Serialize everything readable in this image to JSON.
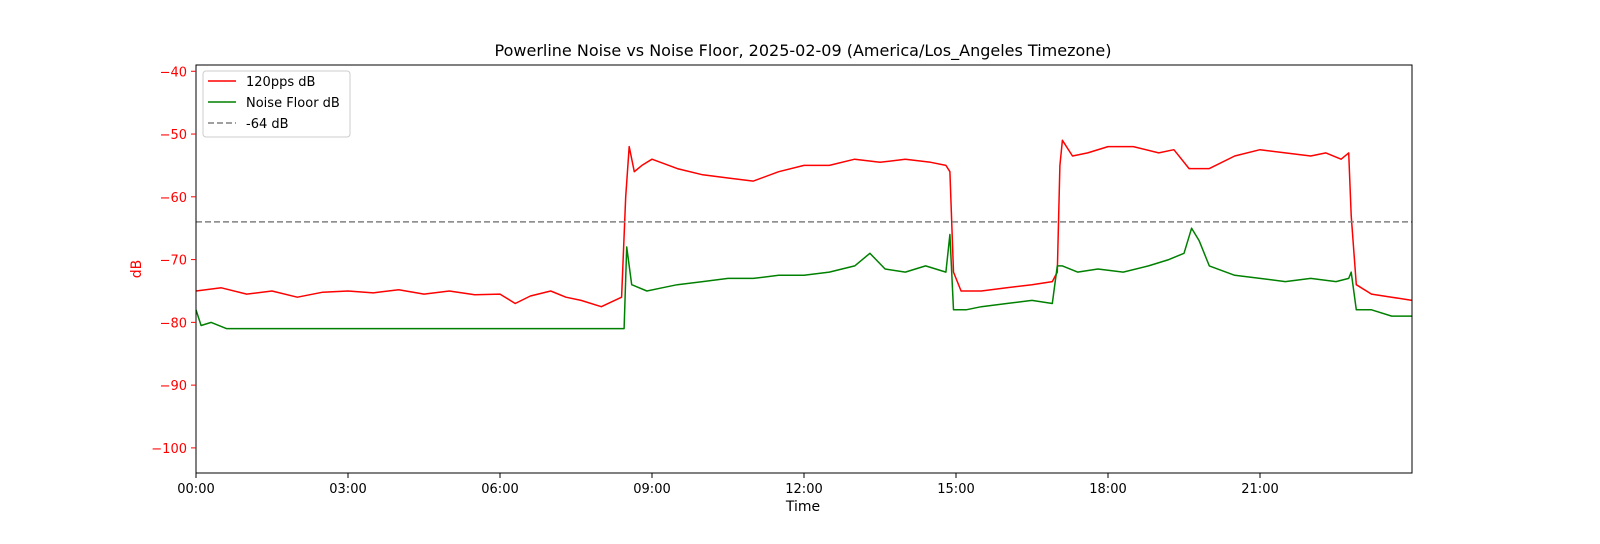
{
  "chart_data": {
    "type": "line",
    "title": "Powerline Noise vs Noise Floor, 2025-02-09 (America/Los_Angeles Timezone)",
    "xlabel": "Time",
    "ylabel": "dB",
    "x_unit": "hours",
    "xlim": [
      0,
      24
    ],
    "ylim": [
      -104,
      -39
    ],
    "x_ticks": [
      {
        "value": 0,
        "label": "00:00"
      },
      {
        "value": 3,
        "label": "03:00"
      },
      {
        "value": 6,
        "label": "06:00"
      },
      {
        "value": 9,
        "label": "09:00"
      },
      {
        "value": 12,
        "label": "12:00"
      },
      {
        "value": 15,
        "label": "15:00"
      },
      {
        "value": 18,
        "label": "18:00"
      },
      {
        "value": 21,
        "label": "21:00"
      }
    ],
    "y_ticks": [
      {
        "value": -40,
        "label": "−40"
      },
      {
        "value": -50,
        "label": "−50"
      },
      {
        "value": -60,
        "label": "−60"
      },
      {
        "value": -70,
        "label": "−70"
      },
      {
        "value": -80,
        "label": "−80"
      },
      {
        "value": -90,
        "label": "−90"
      },
      {
        "value": -100,
        "label": "−100"
      }
    ],
    "grid": false,
    "legend_position": "upper-left",
    "y_axis_color": "#ff0000",
    "series": [
      {
        "name": "120pps dB",
        "color": "#ff0000",
        "style": "solid",
        "x": [
          0,
          0.5,
          1,
          1.5,
          2,
          2.5,
          3,
          3.5,
          4,
          4.5,
          5,
          5.5,
          6,
          6.3,
          6.6,
          7,
          7.3,
          7.6,
          8,
          8.4,
          8.48,
          8.55,
          8.65,
          8.8,
          9,
          9.5,
          10,
          10.5,
          11,
          11.5,
          12,
          12.5,
          13,
          13.5,
          14,
          14.5,
          14.8,
          14.88,
          14.95,
          15.1,
          15.5,
          16,
          16.5,
          16.9,
          17.0,
          17.05,
          17.1,
          17.3,
          17.6,
          18,
          18.5,
          19,
          19.3,
          19.6,
          20,
          20.5,
          21,
          21.5,
          22,
          22.3,
          22.6,
          22.75,
          22.8,
          22.9,
          23.2,
          23.6,
          24
        ],
        "y": [
          -75,
          -74.5,
          -75.5,
          -75,
          -76,
          -75.2,
          -75,
          -75.3,
          -74.8,
          -75.5,
          -75,
          -75.6,
          -75.5,
          -77,
          -75.8,
          -75,
          -76,
          -76.5,
          -77.5,
          -76,
          -60,
          -52,
          -56,
          -55,
          -54,
          -55.5,
          -56.5,
          -57,
          -57.5,
          -56,
          -55,
          -55,
          -54,
          -54.5,
          -54,
          -54.5,
          -55,
          -56,
          -72,
          -75,
          -75,
          -74.5,
          -74,
          -73.5,
          -72,
          -55,
          -51,
          -53.5,
          -53,
          -52,
          -52,
          -53,
          -52.5,
          -55.5,
          -55.5,
          -53.5,
          -52.5,
          -53,
          -53.5,
          -53,
          -54,
          -53,
          -63,
          -74,
          -75.5,
          -76,
          -76.5
        ]
      },
      {
        "name": "Noise Floor dB",
        "color": "#008000",
        "style": "solid",
        "x": [
          0,
          0.1,
          0.3,
          0.6,
          1,
          1.5,
          2,
          3,
          4,
          5,
          5.5,
          6,
          6.5,
          7,
          7.3,
          7.5,
          8,
          8.45,
          8.5,
          8.6,
          8.9,
          9.2,
          9.5,
          10,
          10.5,
          11,
          11.5,
          12,
          12.5,
          13,
          13.3,
          13.6,
          14,
          14.4,
          14.8,
          14.88,
          14.95,
          15.2,
          15.5,
          16,
          16.5,
          16.9,
          17.0,
          17.1,
          17.4,
          17.8,
          18.3,
          18.8,
          19.2,
          19.5,
          19.65,
          19.8,
          20,
          20.5,
          21,
          21.5,
          22,
          22.5,
          22.75,
          22.8,
          22.9,
          23.2,
          23.6,
          24
        ],
        "y": [
          -78,
          -80.5,
          -80,
          -81,
          -81,
          -81,
          -81,
          -81,
          -81,
          -81,
          -81,
          -81,
          -81,
          -81,
          -81,
          -81,
          -81,
          -81,
          -68,
          -74,
          -75,
          -74.5,
          -74,
          -73.5,
          -73,
          -73,
          -72.5,
          -72.5,
          -72,
          -71,
          -69,
          -71.5,
          -72,
          -71,
          -72,
          -66,
          -78,
          -78,
          -77.5,
          -77,
          -76.5,
          -77,
          -71,
          -71,
          -72,
          -71.5,
          -72,
          -71,
          -70,
          -69,
          -65,
          -67,
          -71,
          -72.5,
          -73,
          -73.5,
          -73,
          -73.5,
          -73,
          -72,
          -78,
          -78,
          -79,
          -79
        ]
      },
      {
        "name": "-64 dB",
        "color": "#808080",
        "style": "dashed",
        "x": [
          0,
          24
        ],
        "y": [
          -64,
          -64
        ]
      }
    ]
  }
}
